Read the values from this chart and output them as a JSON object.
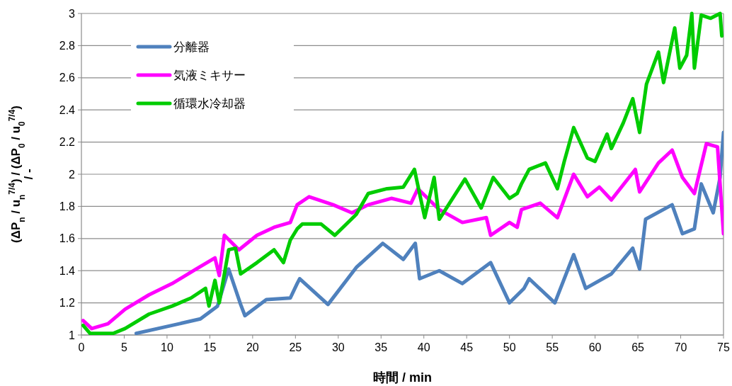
{
  "chart_data": {
    "type": "line",
    "xlabel": "時間 / min",
    "ylabel": "(ΔP$_{n}$ / u$_{n}$$^{7/4}$)  / (ΔP$_{0}$ / u$_{0}$$^{7/4}$)\n/ -",
    "xlim": [
      0,
      75
    ],
    "xticks": [
      0,
      5,
      10,
      15,
      20,
      25,
      30,
      35,
      40,
      45,
      50,
      55,
      60,
      65,
      70,
      75
    ],
    "ylim": [
      1,
      3
    ],
    "yticks": [
      1,
      1.2,
      1.4,
      1.6,
      1.8,
      2,
      2.2,
      2.4,
      2.6,
      2.8,
      3
    ],
    "grid": "y",
    "legend": "top left",
    "line_style": "solid",
    "series": [
      {
        "name": "分離器",
        "color": "#4f81bd",
        "x": [
          6.4,
          10.6,
          13.9,
          15.9,
          17.2,
          18.6,
          19.1,
          21.6,
          24.4,
          25.2,
          25.5,
          28.8,
          32.1,
          35.2,
          37.6,
          39,
          39.5,
          41.8,
          44.5,
          47.8,
          50,
          51.7,
          52.3,
          55.3,
          57.5,
          58.9,
          61.9,
          64.4,
          65.2,
          65.9,
          69,
          70.2,
          71.6,
          72.4,
          73.8,
          74.6,
          75
        ],
        "values": [
          1.01,
          1.06,
          1.1,
          1.18,
          1.41,
          1.19,
          1.12,
          1.22,
          1.23,
          1.32,
          1.35,
          1.19,
          1.42,
          1.57,
          1.47,
          1.57,
          1.35,
          1.4,
          1.32,
          1.45,
          1.2,
          1.29,
          1.35,
          1.2,
          1.5,
          1.29,
          1.38,
          1.54,
          1.41,
          1.72,
          1.81,
          1.63,
          1.66,
          1.94,
          1.76,
          1.98,
          2.26
        ]
      },
      {
        "name": "気液ミキサー",
        "color": "#ff00ff",
        "x": [
          0.2,
          1.2,
          3.1,
          5.1,
          7.9,
          10.6,
          13.4,
          15.6,
          16.1,
          16.7,
          18.4,
          20.5,
          22.5,
          24.4,
          25.2,
          26.6,
          29.4,
          31.6,
          33.5,
          36.2,
          38.5,
          39.3,
          41.8,
          44.5,
          47.3,
          47.8,
          50,
          50.9,
          51.4,
          53.6,
          55.6,
          57.5,
          59.1,
          60.5,
          61.9,
          64.7,
          65.2,
          67.4,
          69,
          70.2,
          71.6,
          73,
          74.3,
          75
        ],
        "values": [
          1.09,
          1.04,
          1.07,
          1.16,
          1.25,
          1.32,
          1.41,
          1.48,
          1.37,
          1.62,
          1.53,
          1.62,
          1.67,
          1.7,
          1.81,
          1.86,
          1.81,
          1.76,
          1.81,
          1.85,
          1.82,
          1.91,
          1.78,
          1.7,
          1.73,
          1.62,
          1.7,
          1.67,
          1.78,
          1.82,
          1.73,
          2,
          1.86,
          1.92,
          1.84,
          2.03,
          1.89,
          2.07,
          2.15,
          1.98,
          1.88,
          2.19,
          2.17,
          1.63
        ]
      },
      {
        "name": "循環水冷却器",
        "color": "#00cc00",
        "x": [
          0.2,
          1,
          3.7,
          5.1,
          7.9,
          10.6,
          12.8,
          14.5,
          14.9,
          15.6,
          16.1,
          17.2,
          18,
          18.6,
          20.5,
          22.5,
          23.6,
          24.4,
          25.2,
          25.8,
          28,
          29.6,
          32.1,
          33.5,
          35.7,
          37.6,
          38.9,
          40.1,
          41.2,
          41.8,
          44.8,
          46.7,
          48.1,
          50,
          50.9,
          51.4,
          52.3,
          54.2,
          55.6,
          56.4,
          57.5,
          59.1,
          60,
          61.4,
          61.9,
          63.3,
          64.4,
          65.2,
          66,
          67.4,
          68,
          69.3,
          69.9,
          70.7,
          71.3,
          71.6,
          72.4,
          73.5,
          74.6,
          74.8
        ],
        "values": [
          1.06,
          1.01,
          1.01,
          1.04,
          1.13,
          1.18,
          1.23,
          1.29,
          1.18,
          1.34,
          1.2,
          1.53,
          1.54,
          1.38,
          1.45,
          1.53,
          1.45,
          1.59,
          1.66,
          1.69,
          1.69,
          1.62,
          1.75,
          1.88,
          1.91,
          1.92,
          2.03,
          1.73,
          1.98,
          1.72,
          1.97,
          1.79,
          1.98,
          1.85,
          1.88,
          1.94,
          2.03,
          2.07,
          1.91,
          2.08,
          2.29,
          2.1,
          2.08,
          2.25,
          2.16,
          2.32,
          2.47,
          2.26,
          2.56,
          2.76,
          2.57,
          2.91,
          2.66,
          2.74,
          3,
          2.66,
          2.99,
          2.97,
          3,
          2.86
        ]
      }
    ]
  }
}
